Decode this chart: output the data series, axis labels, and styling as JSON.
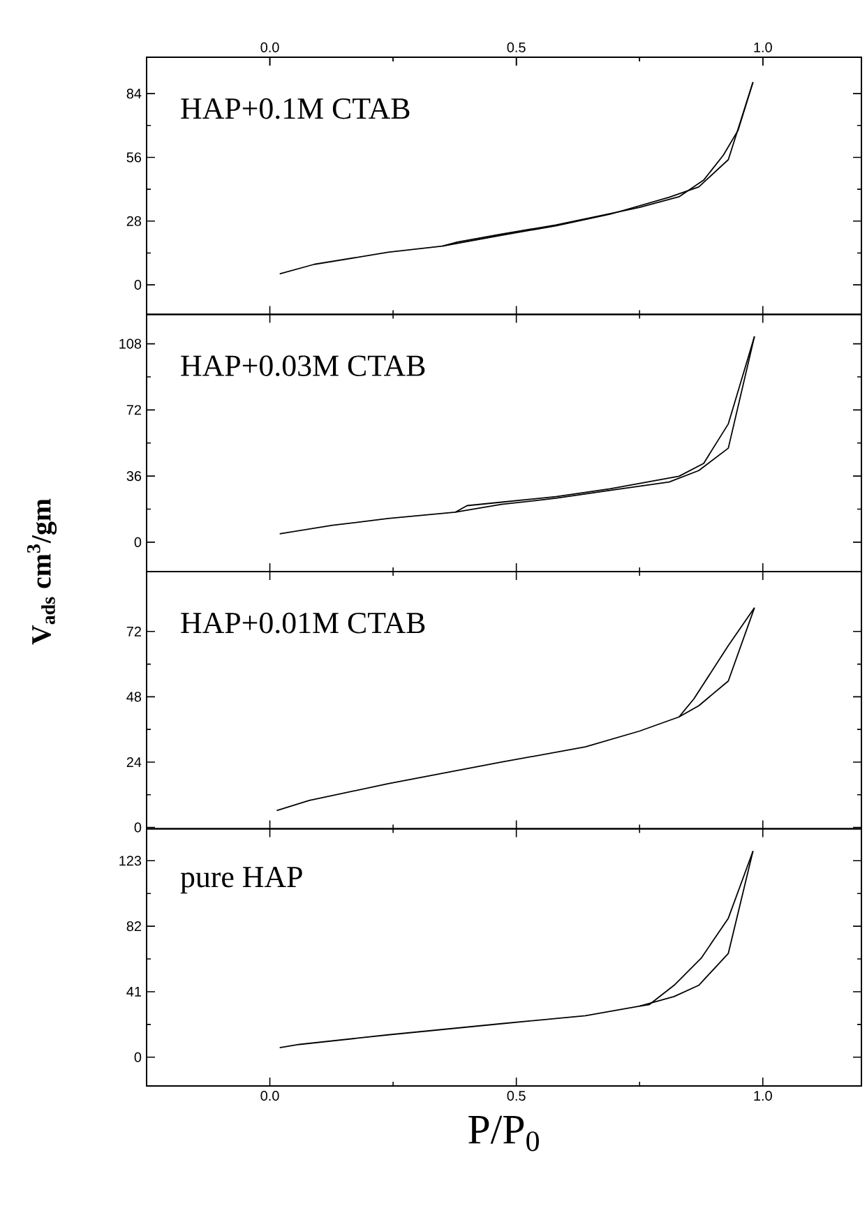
{
  "chart_data": [
    {
      "type": "line",
      "annotations": [
        "HAP+0.1M CTAB"
      ],
      "xlim": [
        -0.25,
        1.2
      ],
      "xticks": [
        {
          "value": 0,
          "label": null
        },
        {
          "value": 0.5,
          "label": null
        },
        {
          "value": 1,
          "label": null
        }
      ],
      "x2lim": [
        -0.25,
        1.2
      ],
      "x2ticks": [
        {
          "value": 0,
          "label": "0.0"
        },
        0.5,
        {
          "value": 1,
          "label": "1.0"
        }
      ],
      "ylim": [
        -13,
        100
      ],
      "yticks": [
        0,
        28,
        56,
        84
      ],
      "tick_labels": "y",
      "series": [
        {
          "color": "#000000",
          "x": [
            0.02,
            0.09,
            0.24,
            0.35,
            0.47,
            0.58,
            0.69,
            0.81,
            0.87,
            0.93,
            0.98
          ],
          "values": [
            4.8,
            9,
            14.3,
            17,
            21.8,
            25.9,
            31,
            38.5,
            43,
            55,
            89
          ]
        },
        {
          "color": "#000000",
          "x": [
            0.98,
            0.95,
            0.92,
            0.88,
            0.83,
            0.75,
            0.69,
            0.58,
            0.47,
            0.38,
            0.35
          ],
          "values": [
            89,
            68,
            57,
            46,
            38.7,
            34,
            31.3,
            26.3,
            22.3,
            18.8,
            17
          ]
        }
      ]
    },
    {
      "type": "line",
      "annotations": [
        "HAP+0.03M CTAB"
      ],
      "ylabel": "V$_{ads}$ cm$^{3}$/gm",
      "xlim": [
        -0.25,
        1.2
      ],
      "xticks": [
        {
          "value": 0,
          "label": null
        },
        {
          "value": 0.5,
          "label": null
        },
        {
          "value": 1,
          "label": null
        }
      ],
      "ylim": [
        -16,
        124
      ],
      "yticks": [
        0,
        36,
        72,
        108
      ],
      "tick_labels": "y",
      "series": [
        {
          "color": "#000000",
          "x": [
            0.02,
            0.127,
            0.24,
            0.376,
            0.47,
            0.58,
            0.69,
            0.81,
            0.87,
            0.93,
            0.983
          ],
          "values": [
            4.6,
            9.2,
            12.9,
            16.3,
            20.6,
            23.9,
            28.2,
            32.8,
            39,
            51.2,
            112
          ]
        },
        {
          "color": "#000000",
          "x": [
            0.983,
            0.93,
            0.88,
            0.83,
            0.69,
            0.58,
            0.47,
            0.4,
            0.376
          ],
          "values": [
            112,
            64.4,
            42.9,
            35.9,
            29.1,
            24.8,
            21.8,
            19.9,
            16.3
          ]
        }
      ]
    },
    {
      "type": "line",
      "annotations": [
        "HAP+0.01M CTAB"
      ],
      "xlim": [
        -0.25,
        1.2
      ],
      "xticks": [
        {
          "value": 0,
          "label": null
        },
        {
          "value": 0.5,
          "label": null
        },
        {
          "value": 1,
          "label": null
        }
      ],
      "ylim": [
        -0.5,
        94
      ],
      "yticks": [
        0,
        24,
        48,
        72
      ],
      "tick_labels": "y",
      "series": [
        {
          "color": "#000000",
          "x": [
            0.014,
            0.08,
            0.24,
            0.47,
            0.64,
            0.75,
            0.83,
            0.87,
            0.93,
            0.983
          ],
          "values": [
            6.2,
            9.9,
            16.1,
            24,
            29.6,
            35.4,
            40.6,
            44.7,
            53.8,
            80.7
          ]
        },
        {
          "color": "#000000",
          "x": [
            0.983,
            0.93,
            0.86,
            0.83
          ],
          "values": [
            80.7,
            66.8,
            47.2,
            40.6
          ]
        }
      ]
    },
    {
      "type": "line",
      "annotations": [
        "pure HAP"
      ],
      "xlabel": "P/P$_{0}$",
      "xlim": [
        -0.25,
        1.2
      ],
      "xticks": [
        {
          "value": 0,
          "label": "0.0"
        },
        0.5,
        {
          "value": 1,
          "label": "1.0"
        }
      ],
      "ylim": [
        -18,
        143
      ],
      "yticks": [
        0,
        41,
        82,
        123
      ],
      "series": [
        {
          "color": "#000000",
          "x": [
            0.02,
            0.06,
            0.24,
            0.47,
            0.64,
            0.75,
            0.82,
            0.87,
            0.93,
            0.98
          ],
          "values": [
            6,
            8,
            14,
            21,
            26,
            32,
            38,
            45,
            65,
            129
          ]
        },
        {
          "color": "#000000",
          "x": [
            0.98,
            0.93,
            0.875,
            0.82,
            0.77,
            0.75
          ],
          "values": [
            129,
            87,
            62,
            45,
            33,
            32
          ]
        }
      ]
    }
  ]
}
